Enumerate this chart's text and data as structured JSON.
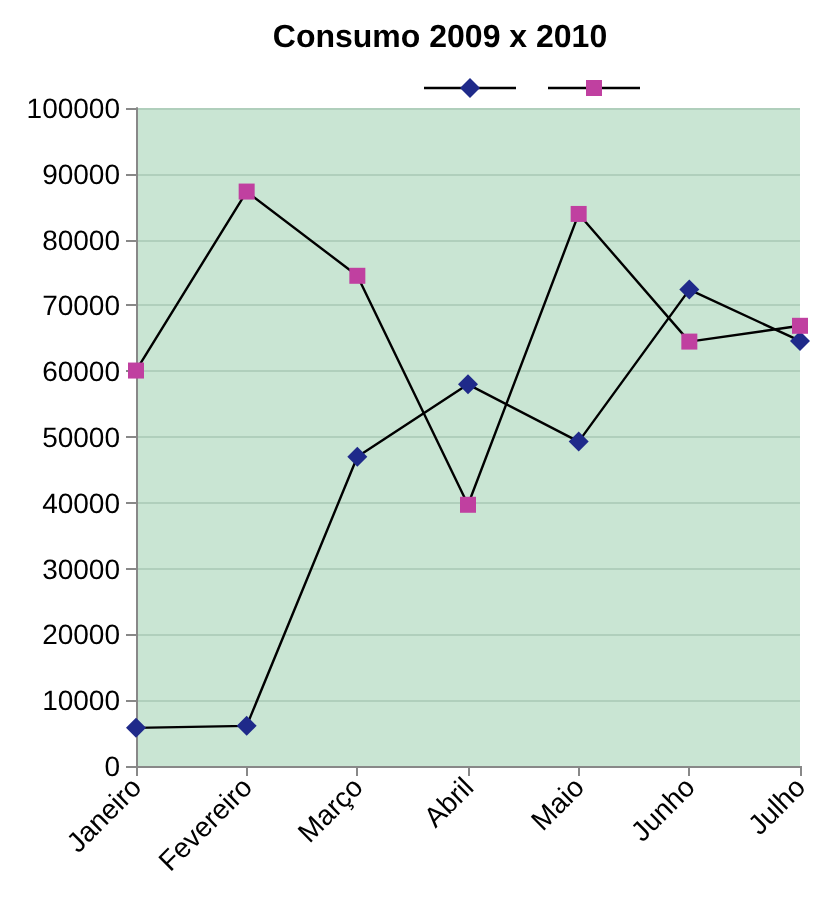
{
  "chart_data": {
    "type": "line",
    "title": "Consumo 2009 x 2010",
    "categories": [
      "Janeiro",
      "Fevereiro",
      "Março",
      "Abril",
      "Maio",
      "Junho",
      "Julho"
    ],
    "series": [
      {
        "color": "#1f2a8a",
        "values": [
          5800,
          6100,
          47000,
          58000,
          49300,
          72400,
          64600
        ],
        "marker": "diamond"
      },
      {
        "color": "#c040a0",
        "values": [
          60100,
          87300,
          74500,
          39700,
          83900,
          64500,
          66900
        ],
        "marker": "square"
      }
    ],
    "ylim": [
      0,
      100000
    ],
    "yticks": [
      0,
      10000,
      20000,
      30000,
      40000,
      50000,
      60000,
      70000,
      80000,
      90000,
      100000
    ],
    "grid": "y",
    "line_style": "solid"
  }
}
